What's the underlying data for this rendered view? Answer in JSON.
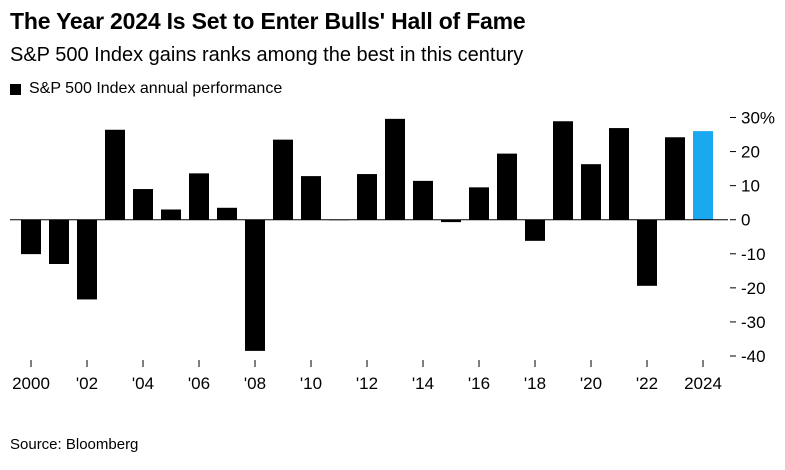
{
  "header": {
    "title": "The Year 2024 Is Set to Enter Bulls' Hall of Fame",
    "subtitle": "S&P 500 Index gains ranks among the best in this century",
    "legend_label": "S&P 500 Index annual performance"
  },
  "footer": {
    "source": "Source: Bloomberg"
  },
  "colors": {
    "bar": "#000000",
    "highlight": "#1aa9f0",
    "tick": "#000000"
  },
  "chart_data": {
    "type": "bar",
    "title": "The Year 2024 Is Set to Enter Bulls' Hall of Fame",
    "subtitle": "S&P 500 Index gains ranks among the best in this century",
    "xlabel": "",
    "ylabel": "",
    "series": [
      {
        "name": "S&P 500 Index annual performance",
        "categories": [
          "2000",
          "2001",
          "2002",
          "2003",
          "2004",
          "2005",
          "2006",
          "2007",
          "2008",
          "2009",
          "2010",
          "2011",
          "2012",
          "2013",
          "2014",
          "2015",
          "2016",
          "2017",
          "2018",
          "2019",
          "2020",
          "2021",
          "2022",
          "2023",
          "2024"
        ],
        "values": [
          -10.1,
          -13.0,
          -23.4,
          26.4,
          9.0,
          3.0,
          13.6,
          3.5,
          -38.5,
          23.5,
          12.8,
          0.0,
          13.4,
          29.6,
          11.4,
          -0.7,
          9.5,
          19.4,
          -6.2,
          28.9,
          16.3,
          26.9,
          -19.4,
          24.2,
          26.0
        ]
      }
    ],
    "highlight_category": "2024",
    "x_tick_labels": [
      "2000",
      "'02",
      "'04",
      "'06",
      "'08",
      "'10",
      "'12",
      "'14",
      "'16",
      "'18",
      "'20",
      "'22",
      "2024"
    ],
    "y_ticks": [
      30,
      20,
      10,
      0,
      -10,
      -20,
      -30,
      -40
    ],
    "y_tick_labels": [
      "30%",
      "20",
      "10",
      "0",
      "-10",
      "-20",
      "-30",
      "-40"
    ],
    "ylim": [
      -40,
      30
    ],
    "y_axis_position": "right",
    "grid": false,
    "legend_position": "top-left"
  }
}
